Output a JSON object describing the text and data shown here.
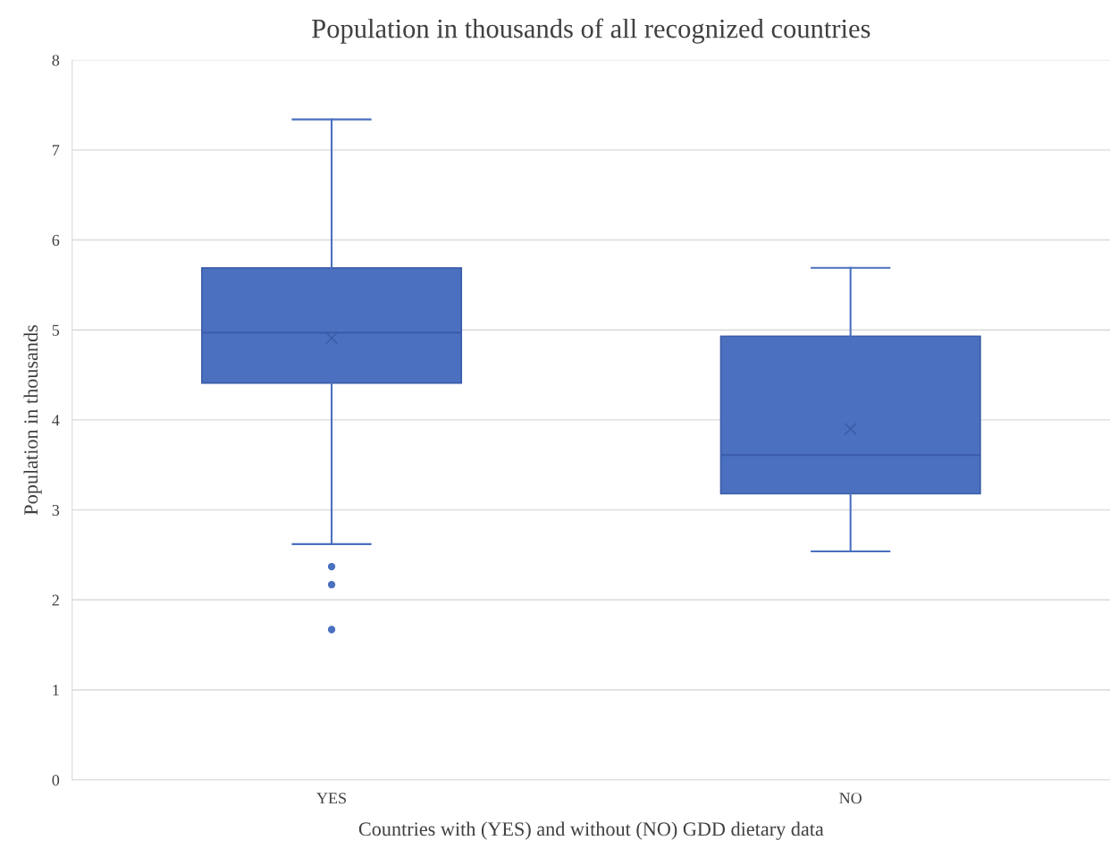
{
  "chart_data": {
    "type": "box",
    "title": "Population in thousands of all recognized countries",
    "xlabel": "Countries with (YES) and without (NO) GDD dietary data",
    "ylabel": "Population in thousands",
    "categories": [
      "YES",
      "NO"
    ],
    "boxes": [
      {
        "low": 2.62,
        "q1": 4.41,
        "median": 4.97,
        "q3": 5.69,
        "high": 7.34,
        "mean": 4.91,
        "outliers": [
          2.37,
          2.17,
          1.67
        ]
      },
      {
        "low": 2.54,
        "q1": 3.18,
        "median": 3.61,
        "q3": 4.93,
        "high": 5.69,
        "mean": 3.9
      }
    ],
    "color": "#4a70bf",
    "ylim": [
      0,
      8
    ],
    "yticks": [
      0,
      1,
      2,
      3,
      4,
      5,
      6,
      7,
      8
    ],
    "grid": "y"
  }
}
